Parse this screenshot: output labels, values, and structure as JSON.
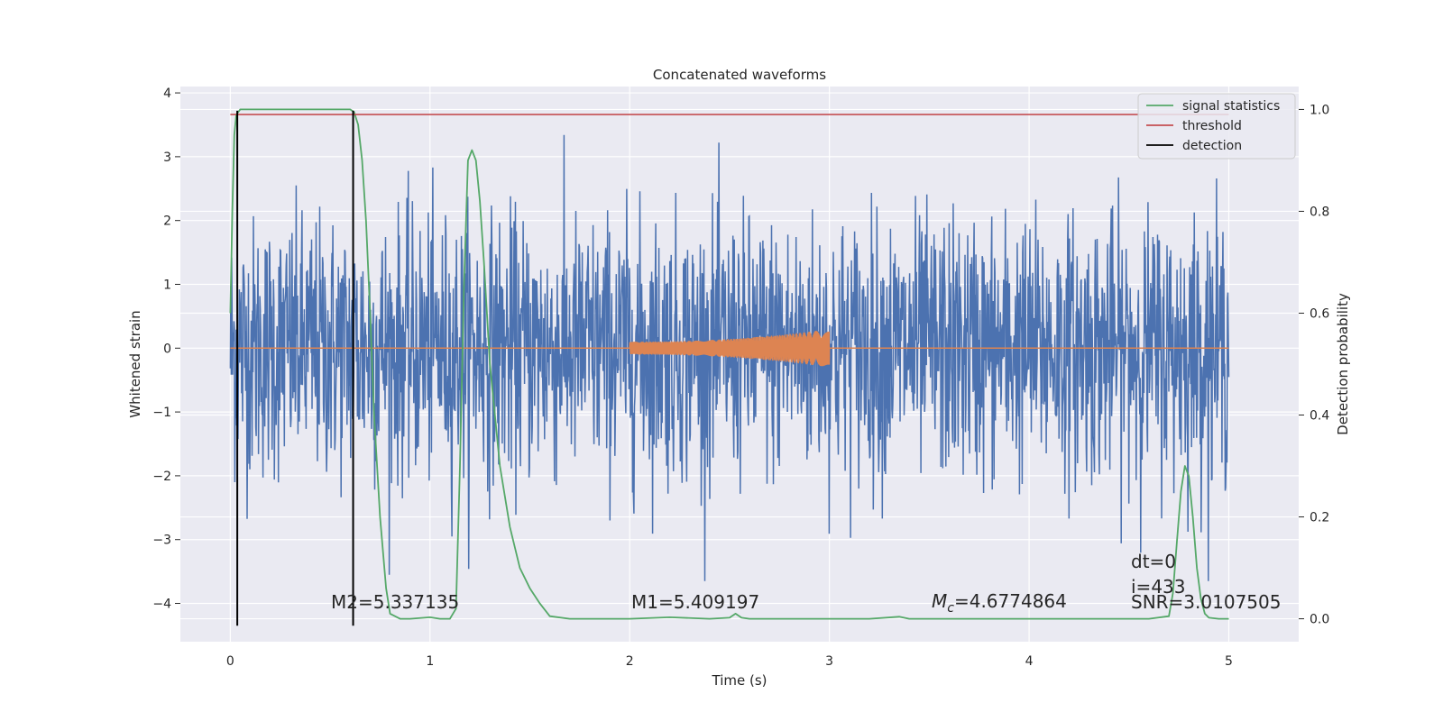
{
  "chart_data": {
    "type": "line",
    "title": "Concatenated waveforms",
    "xlabel": "Time (s)",
    "ylabel": "Whitened strain",
    "ylabel_right": "Detection probability",
    "xlim": [
      -0.25,
      5.35
    ],
    "ylim": [
      -4.6,
      4.1
    ],
    "ylim_right": [
      -0.045,
      1.045
    ],
    "x_ticks": [
      "0",
      "1",
      "2",
      "3",
      "4",
      "5"
    ],
    "y_ticks": [
      "4",
      "3",
      "2",
      "1",
      "0",
      "−1",
      "−2",
      "−3",
      "−4"
    ],
    "y_ticks_right": [
      "1.0",
      "0.8",
      "0.6",
      "0.4",
      "0.2",
      "0.0"
    ],
    "grid": true,
    "legend_position": "top-right",
    "colors": {
      "background": "#eaeaf2",
      "grid": "#ffffff",
      "noise": "#4c72b0",
      "injection": "#dd8452",
      "signal_statistics": "#55a868",
      "threshold": "#c44e52",
      "detection": "#000000"
    },
    "series": [
      {
        "name": "signal statistics",
        "axis": "right",
        "x": [
          0.0,
          0.01,
          0.02,
          0.03,
          0.05,
          0.08,
          0.12,
          0.2,
          0.4,
          0.6,
          0.62,
          0.64,
          0.66,
          0.68,
          0.7,
          0.72,
          0.75,
          0.78,
          0.8,
          0.85,
          0.9,
          1.0,
          1.05,
          1.1,
          1.13,
          1.15,
          1.17,
          1.19,
          1.21,
          1.23,
          1.25,
          1.27,
          1.3,
          1.35,
          1.4,
          1.45,
          1.5,
          1.55,
          1.6,
          1.7,
          1.8,
          2.0,
          2.2,
          2.4,
          2.5,
          2.53,
          2.56,
          2.6,
          2.8,
          3.0,
          3.2,
          3.35,
          3.4,
          3.6,
          3.8,
          4.0,
          4.2,
          4.4,
          4.6,
          4.7,
          4.72,
          4.74,
          4.76,
          4.78,
          4.8,
          4.82,
          4.84,
          4.86,
          4.88,
          4.9,
          4.95,
          5.0
        ],
        "y": [
          0.6,
          0.8,
          0.95,
          0.99,
          1.0,
          1.0,
          1.0,
          1.0,
          1.0,
          1.0,
          0.995,
          0.97,
          0.9,
          0.78,
          0.6,
          0.4,
          0.2,
          0.06,
          0.01,
          0.0,
          0.0,
          0.003,
          0.0,
          0.0,
          0.02,
          0.3,
          0.65,
          0.9,
          0.92,
          0.9,
          0.82,
          0.7,
          0.5,
          0.3,
          0.18,
          0.1,
          0.06,
          0.03,
          0.005,
          0.0,
          0.0,
          0.0,
          0.003,
          0.0,
          0.002,
          0.01,
          0.002,
          0.0,
          0.0,
          0.0,
          0.0,
          0.004,
          0.0,
          0.0,
          0.0,
          0.0,
          0.0,
          0.0,
          0.0,
          0.005,
          0.05,
          0.15,
          0.25,
          0.3,
          0.28,
          0.2,
          0.1,
          0.04,
          0.01,
          0.002,
          0.0,
          0.0
        ]
      },
      {
        "name": "threshold",
        "axis": "right",
        "x": [
          0.0,
          5.0
        ],
        "y": [
          0.99,
          0.99
        ]
      },
      {
        "name": "detection",
        "axis": "left",
        "x": [
          0.035,
          0.615
        ],
        "y": [
          -4.35,
          3.72
        ]
      }
    ],
    "noise_series": {
      "x_range": [
        0.0,
        5.0
      ],
      "typical_amplitude": 1.2,
      "peak_max": 3.72,
      "peak_min": -3.65
    },
    "injection_series": {
      "x_range": [
        2.0,
        3.0
      ],
      "amplitude_start": 0.1,
      "amplitude_end": 0.3
    },
    "annotations": {
      "m2": "M2=5.337135",
      "m1": "M1=5.409197",
      "mc_symbol": "M",
      "mc_sub": "c",
      "mc_value": "=4.6774864",
      "dt": "dt=0",
      "i": "i=433",
      "snr": "SNR=3.0107505"
    }
  }
}
